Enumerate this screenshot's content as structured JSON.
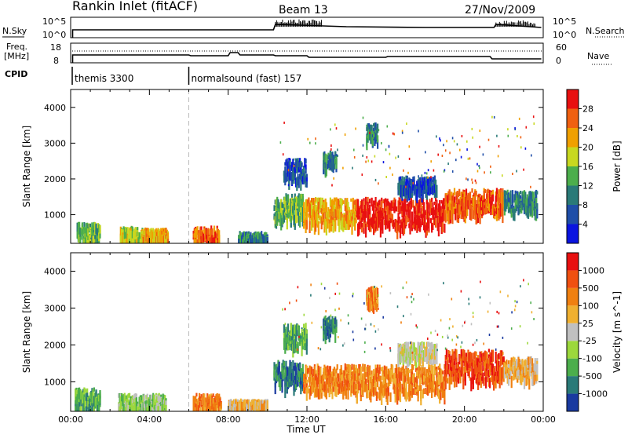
{
  "header": {
    "station": "Rankin Inlet (fitACF)",
    "beam": "Beam 13",
    "date": "27/Nov/2009"
  },
  "panels": {
    "nsky_label": "N.Sky",
    "nsearch_label": "N.Search",
    "nsky_ticks": [
      "10^5",
      "10^0"
    ],
    "nsearch_ticks": [
      "10^5",
      "10^0"
    ],
    "freq_label": "Freq.",
    "freq_unit": "[MHz]",
    "freq_ticks": [
      "18",
      "8"
    ],
    "nave_label": "Nave",
    "nave_ticks": [
      "60",
      "0"
    ],
    "cpid_label": "CPID",
    "cpid_segments": [
      {
        "name": "themis 3300",
        "start_h": 0,
        "end_h": 6
      },
      {
        "name": "normalsound (fast) 157",
        "start_h": 6,
        "end_h": 24
      }
    ]
  },
  "chart_data": [
    {
      "type": "heatmap",
      "name": "power",
      "ylabel": "Slant Range [km]",
      "xlabel": "Time UT",
      "xlim": [
        0,
        24
      ],
      "ylim": [
        200,
        4500
      ],
      "yticks": [
        1000,
        2000,
        3000,
        4000
      ],
      "xticks": [
        "00:00",
        "04:00",
        "08:00",
        "12:00",
        "16:00",
        "20:00",
        "00:00"
      ],
      "colorbar_label": "Power [dB]",
      "colorbar_ticks": [
        "28",
        "24",
        "20",
        "16",
        "12",
        "8",
        "4"
      ],
      "colorbar_colors": [
        "#0a14e0",
        "#1f4ea8",
        "#2a7a78",
        "#4cae4c",
        "#c8d820",
        "#f0a000",
        "#f06010",
        "#e81010"
      ],
      "regions": [
        {
          "t0": 0.3,
          "t1": 1.5,
          "r0": 300,
          "r1": 800,
          "level": 3
        },
        {
          "t0": 2.5,
          "t1": 3.6,
          "r0": 300,
          "r1": 700,
          "level": 4
        },
        {
          "t0": 3.6,
          "t1": 4.9,
          "r0": 300,
          "r1": 650,
          "level": 5
        },
        {
          "t0": 6.2,
          "t1": 7.5,
          "r0": 300,
          "r1": 700,
          "level": 6
        },
        {
          "t0": 8.5,
          "t1": 10.0,
          "r0": 300,
          "r1": 550,
          "level": 2
        },
        {
          "t0": 10.3,
          "t1": 11.8,
          "r0": 900,
          "r1": 1600,
          "level": 3
        },
        {
          "t0": 11.8,
          "t1": 14.5,
          "r0": 800,
          "r1": 1500,
          "level": 5
        },
        {
          "t0": 14.5,
          "t1": 19.0,
          "r0": 700,
          "r1": 1500,
          "level": 7
        },
        {
          "t0": 19.0,
          "t1": 22.0,
          "r0": 1100,
          "r1": 1750,
          "level": 6
        },
        {
          "t0": 22.0,
          "t1": 23.7,
          "r0": 1150,
          "r1": 1700,
          "level": 2
        },
        {
          "t0": 12.8,
          "t1": 13.5,
          "r0": 2400,
          "r1": 2800,
          "level": 2
        },
        {
          "t0": 15.0,
          "t1": 15.6,
          "r0": 3100,
          "r1": 3600,
          "level": 2
        },
        {
          "t0": 16.6,
          "t1": 18.6,
          "r0": 1700,
          "r1": 2100,
          "level": 1
        },
        {
          "t0": 10.8,
          "t1": 12.0,
          "r0": 2000,
          "r1": 2600,
          "level": 1
        }
      ]
    },
    {
      "type": "heatmap",
      "name": "velocity",
      "ylabel": "Slant Range [km]",
      "xlabel": "Time UT",
      "xlim": [
        0,
        24
      ],
      "ylim": [
        200,
        4500
      ],
      "yticks": [
        1000,
        2000,
        3000,
        4000
      ],
      "xticks": [
        "00:00",
        "04:00",
        "08:00",
        "12:00",
        "16:00",
        "20:00",
        "00:00"
      ],
      "colorbar_label": "Velocity [m s^-1]",
      "colorbar_ticks": [
        "1000",
        "500",
        "100",
        "25",
        "-25",
        "-100",
        "-500",
        "-1000"
      ],
      "colorbar_colors": [
        "#1a3aa0",
        "#2a7a78",
        "#4cae4c",
        "#9cd83c",
        "#c0c0c0",
        "#f0b030",
        "#f08010",
        "#f05010",
        "#e81010"
      ],
      "regions": [
        {
          "t0": 0.2,
          "t1": 1.5,
          "r0": 300,
          "r1": 850,
          "level": 2
        },
        {
          "t0": 2.4,
          "t1": 4.8,
          "r0": 300,
          "r1": 700,
          "level": 3
        },
        {
          "t0": 6.2,
          "t1": 7.6,
          "r0": 300,
          "r1": 700,
          "level": 6
        },
        {
          "t0": 8.0,
          "t1": 10.0,
          "r0": 300,
          "r1": 550,
          "level": 5
        },
        {
          "t0": 10.3,
          "t1": 11.8,
          "r0": 900,
          "r1": 1600,
          "level": 1
        },
        {
          "t0": 11.8,
          "t1": 14.5,
          "r0": 800,
          "r1": 1500,
          "level": 6
        },
        {
          "t0": 14.5,
          "t1": 19.0,
          "r0": 700,
          "r1": 1500,
          "level": 6
        },
        {
          "t0": 19.0,
          "t1": 22.0,
          "r0": 1100,
          "r1": 1900,
          "level": 7
        },
        {
          "t0": 22.0,
          "t1": 23.7,
          "r0": 1150,
          "r1": 1700,
          "level": 5
        },
        {
          "t0": 12.8,
          "t1": 13.5,
          "r0": 2400,
          "r1": 2800,
          "level": 1
        },
        {
          "t0": 15.0,
          "t1": 15.6,
          "r0": 3100,
          "r1": 3600,
          "level": 6
        },
        {
          "t0": 16.6,
          "t1": 18.6,
          "r0": 1700,
          "r1": 2100,
          "level": 4
        },
        {
          "t0": 10.8,
          "t1": 12.0,
          "r0": 2000,
          "r1": 2600,
          "level": 2
        }
      ]
    }
  ]
}
